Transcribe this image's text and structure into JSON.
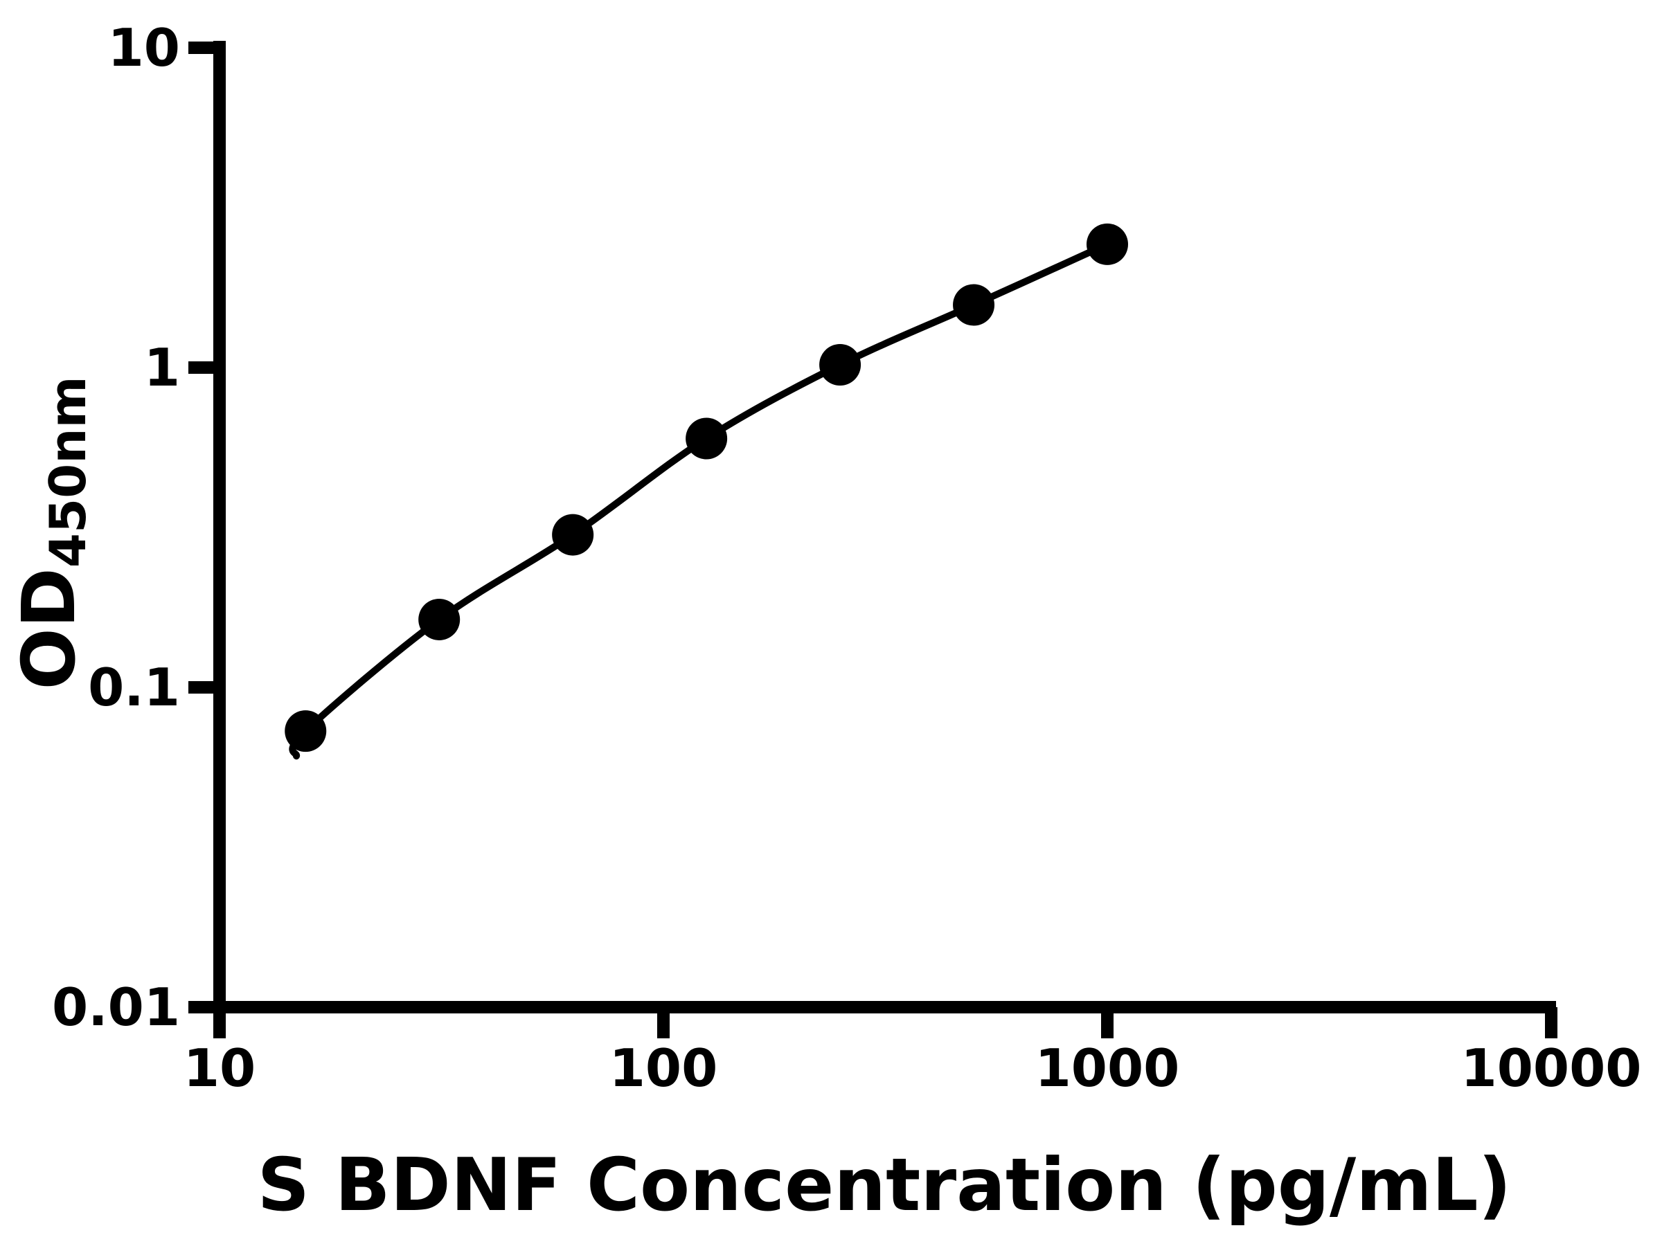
{
  "figure": {
    "background": "#ffffff",
    "foreground": "#000000"
  },
  "chart_data": {
    "type": "scatter",
    "title": "",
    "xlabel": "S BDNF Concentration (pg/mL)",
    "ylabel": "OD450nm",
    "ylabel_main": "OD",
    "ylabel_sub": "450nm",
    "x_scale": "log",
    "y_scale": "log",
    "xlim": [
      10,
      10000
    ],
    "ylim": [
      0.01,
      10
    ],
    "x_ticks": [
      10,
      100,
      1000,
      10000
    ],
    "x_tick_labels": [
      "10",
      "100",
      "1000",
      "10000"
    ],
    "y_ticks": [
      0.01,
      0.1,
      1,
      10
    ],
    "y_tick_labels": [
      "0.01",
      "0.1",
      "1",
      "10"
    ],
    "grid": false,
    "legend": false,
    "series": [
      {
        "marker": "filled-circle",
        "marker_color": "#000000",
        "line_color": "#000000",
        "points": [
          {
            "x": 15.625,
            "y": 0.073
          },
          {
            "x": 31.25,
            "y": 0.163
          },
          {
            "x": 62.5,
            "y": 0.3
          },
          {
            "x": 125,
            "y": 0.6
          },
          {
            "x": 250,
            "y": 1.02
          },
          {
            "x": 500,
            "y": 1.57
          },
          {
            "x": 1000,
            "y": 2.43
          }
        ],
        "curve_tail": {
          "x": 14.9,
          "y": 0.061
        }
      }
    ]
  }
}
